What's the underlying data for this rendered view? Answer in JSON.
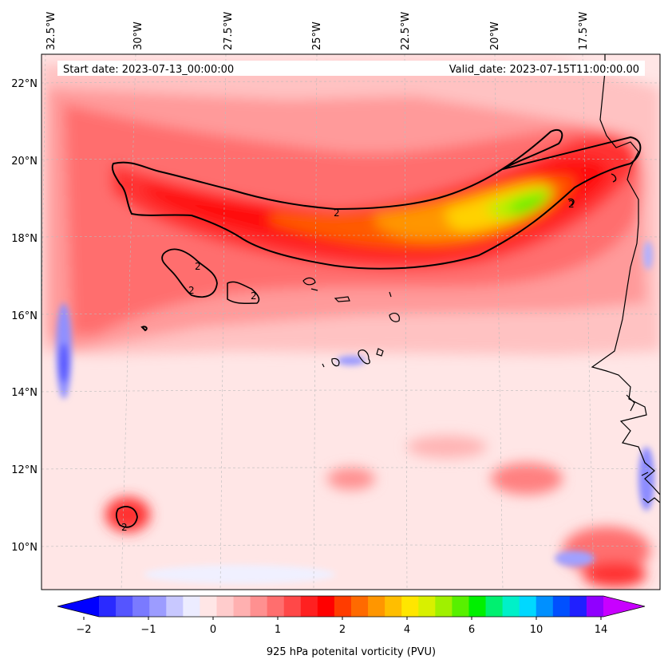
{
  "map": {
    "start_date_text": "Start date: 2023-07-13_00:00:00",
    "valid_date_text": "Valid_date: 2023-07-15T11:00:00.00",
    "lon_labels": [
      "32.5°W",
      "30°W",
      "27.5°W",
      "25°W",
      "22.5°W",
      "20°W",
      "17.5°W"
    ],
    "lat_labels": [
      "22°N",
      "20°N",
      "18°N",
      "16°N",
      "14°N",
      "12°N",
      "10°N"
    ],
    "contour_label": "2",
    "colorbar": {
      "title": "925 hPa potenital vorticity (PVU)",
      "ticks": [
        "−2",
        "−1",
        "0",
        "1",
        "2",
        "4",
        "6",
        "10",
        "14"
      ],
      "colors": [
        "#0000ff",
        "#2a2aff",
        "#5555ff",
        "#7a7aff",
        "#9c9cff",
        "#c8c8ff",
        "#ececff",
        "#ffe6e6",
        "#ffcccc",
        "#ffb0b0",
        "#ff9090",
        "#ff6e6e",
        "#ff4848",
        "#ff2020",
        "#ff0000",
        "#ff3c00",
        "#ff6a00",
        "#ff9600",
        "#ffbe00",
        "#ffe600",
        "#d8f000",
        "#a0f000",
        "#58f000",
        "#00f000",
        "#00f070",
        "#00f0c8",
        "#00d8ff",
        "#0090ff",
        "#0050ff",
        "#2020ff",
        "#9000ff",
        "#c800ff"
      ]
    }
  }
}
